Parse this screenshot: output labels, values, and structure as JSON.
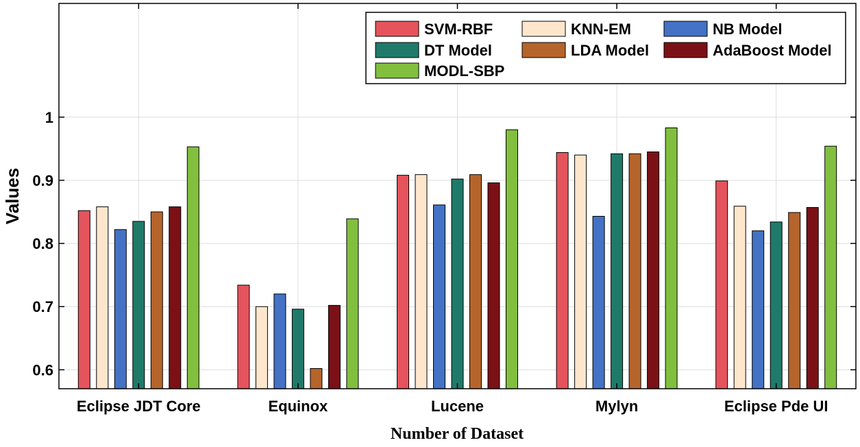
{
  "chart_data": {
    "type": "bar",
    "title": "",
    "xlabel": "Number of Dataset",
    "ylabel": "Values",
    "ylim": [
      0.57,
      1.18
    ],
    "yticks": [
      0.6,
      0.7,
      0.8,
      0.9,
      1.0
    ],
    "ytick_labels": [
      "0.6",
      "0.7",
      "0.8",
      "0.9",
      "1"
    ],
    "grid": true,
    "legend_position": "top-right",
    "categories": [
      "Eclipse JDT Core",
      "Equinox",
      "Lucene",
      "Mylyn",
      "Eclipse Pde UI"
    ],
    "series": [
      {
        "name": "SVM-RBF",
        "color": "#e5545c",
        "values": [
          0.852,
          0.734,
          0.908,
          0.944,
          0.899
        ]
      },
      {
        "name": "KNN-EM",
        "color": "#fde6cc",
        "values": [
          0.858,
          0.7,
          0.909,
          0.94,
          0.859
        ]
      },
      {
        "name": "NB Model",
        "color": "#4472c4",
        "values": [
          0.822,
          0.72,
          0.861,
          0.843,
          0.82
        ]
      },
      {
        "name": "DT Model",
        "color": "#1f7a6a",
        "values": [
          0.835,
          0.696,
          0.902,
          0.942,
          0.834
        ]
      },
      {
        "name": "LDA Model",
        "color": "#b5652b",
        "values": [
          0.85,
          0.602,
          0.909,
          0.942,
          0.849
        ]
      },
      {
        "name": "AdaBoost Model",
        "color": "#7b1116",
        "values": [
          0.858,
          0.702,
          0.896,
          0.945,
          0.857
        ]
      },
      {
        "name": "MODL-SBP",
        "color": "#82bf3f",
        "values": [
          0.953,
          0.839,
          0.98,
          0.983,
          0.954
        ]
      }
    ]
  }
}
